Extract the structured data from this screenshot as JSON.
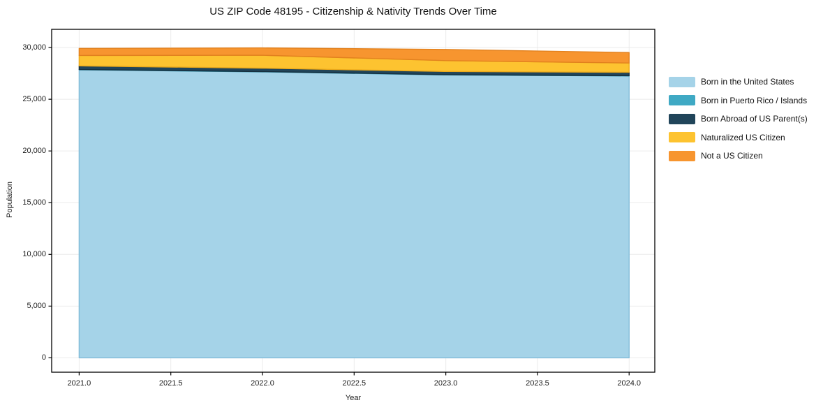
{
  "figure": {
    "title": "US ZIP Code 48195 - Citizenship & Nativity Trends Over Time",
    "x_axis": {
      "label": "Year",
      "ticks": [
        {
          "value": 2021.0,
          "label": "2021.0"
        },
        {
          "value": 2021.5,
          "label": "2021.5"
        },
        {
          "value": 2022.0,
          "label": "2022.0"
        },
        {
          "value": 2022.5,
          "label": "2022.5"
        },
        {
          "value": 2023.0,
          "label": "2023.0"
        },
        {
          "value": 2023.5,
          "label": "2023.5"
        },
        {
          "value": 2024.0,
          "label": "2024.0"
        }
      ]
    },
    "y_axis": {
      "label": "Population",
      "ticks": [
        {
          "value": 0,
          "label": "0"
        },
        {
          "value": 5000,
          "label": "5,000"
        },
        {
          "value": 10000,
          "label": "10,000"
        },
        {
          "value": 15000,
          "label": "15,000"
        },
        {
          "value": 20000,
          "label": "20,000"
        },
        {
          "value": 25000,
          "label": "25,000"
        },
        {
          "value": 30000,
          "label": "30,000"
        }
      ]
    }
  },
  "legend": {
    "position": "right-outside",
    "items": [
      {
        "label": "Born in the United States",
        "color": "#a5d3e8"
      },
      {
        "label": "Born in Puerto Rico / Islands",
        "color": "#3fa9c4"
      },
      {
        "label": "Born Abroad of US Parent(s)",
        "color": "#21455a"
      },
      {
        "label": "Naturalized US Citizen",
        "color": "#fdc330"
      },
      {
        "label": "Not a US Citizen",
        "color": "#f7952f"
      }
    ]
  },
  "chart_data": {
    "type": "area",
    "stacked": true,
    "title": "US ZIP Code 48195 - Citizenship & Nativity Trends Over Time",
    "xlabel": "Year",
    "ylabel": "Population",
    "x": [
      2021,
      2022,
      2023,
      2024
    ],
    "series": [
      {
        "id": "born-in-us",
        "name": "Born in the United States",
        "color": "#a5d3e8",
        "edge": "#82bcd9",
        "values": [
          27850,
          27650,
          27350,
          27250
        ]
      },
      {
        "id": "born-pr-islands",
        "name": "Born in Puerto Rico / Islands",
        "color": "#3fa9c4",
        "edge": "#2f94ad",
        "values": [
          25,
          25,
          25,
          25
        ]
      },
      {
        "id": "born-abroad",
        "name": "Born Abroad of US Parent(s)",
        "color": "#21455a",
        "edge": "#16303f",
        "values": [
          350,
          330,
          310,
          330
        ]
      },
      {
        "id": "naturalized",
        "name": "Naturalized US Citizen",
        "color": "#fdc330",
        "edge": "#edaa1a",
        "values": [
          1010,
          1250,
          1050,
          900
        ]
      },
      {
        "id": "not-citizen",
        "name": "Not a US Citizen",
        "color": "#f7952f",
        "edge": "#e2811e",
        "values": [
          680,
          710,
          1080,
          1010
        ]
      }
    ],
    "totals": [
      29915,
      29965,
      29815,
      29515
    ],
    "xlim": [
      2020.85,
      2024.14
    ],
    "ylim": [
      -1390,
      31760
    ],
    "grid": true,
    "grid_color": "#ebebeb",
    "legend_position": "right"
  }
}
